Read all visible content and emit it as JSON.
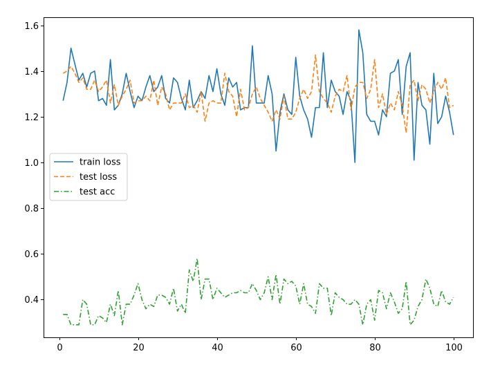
{
  "chart_data": {
    "type": "line",
    "title": "",
    "xlabel": "",
    "ylabel": "",
    "xlim": [
      -3.95,
      104.95
    ],
    "ylim": [
      0.235,
      1.635
    ],
    "xticks": [
      0,
      20,
      40,
      60,
      80,
      100
    ],
    "yticks": [
      0.4,
      0.6,
      0.8,
      1.0,
      1.2,
      1.4,
      1.6
    ],
    "ytick_labels": [
      "0.4",
      "0.6",
      "0.8",
      "1.0",
      "1.2",
      "1.4",
      "1.6"
    ],
    "grid": false,
    "legend_position": "center-left",
    "x": [
      1,
      2,
      3,
      4,
      5,
      6,
      7,
      8,
      9,
      10,
      11,
      12,
      13,
      14,
      15,
      16,
      17,
      18,
      19,
      20,
      21,
      22,
      23,
      24,
      25,
      26,
      27,
      28,
      29,
      30,
      31,
      32,
      33,
      34,
      35,
      36,
      37,
      38,
      39,
      40,
      41,
      42,
      43,
      44,
      45,
      46,
      47,
      48,
      49,
      50,
      51,
      52,
      53,
      54,
      55,
      56,
      57,
      58,
      59,
      60,
      61,
      62,
      63,
      64,
      65,
      66,
      67,
      68,
      69,
      70,
      71,
      72,
      73,
      74,
      75,
      76,
      77,
      78,
      79,
      80,
      81,
      82,
      83,
      84,
      85,
      86,
      87,
      88,
      89,
      90,
      91,
      92,
      93,
      94,
      95,
      96,
      97,
      98,
      99,
      100
    ],
    "series": [
      {
        "name": "train loss",
        "color": "#1f77b4",
        "style": "solid",
        "values": [
          1.27,
          1.35,
          1.5,
          1.43,
          1.36,
          1.39,
          1.33,
          1.39,
          1.4,
          1.27,
          1.28,
          1.25,
          1.45,
          1.23,
          1.25,
          1.3,
          1.39,
          1.31,
          1.24,
          1.29,
          1.27,
          1.33,
          1.38,
          1.31,
          1.33,
          1.38,
          1.28,
          1.26,
          1.37,
          1.35,
          1.28,
          1.23,
          1.36,
          1.24,
          1.27,
          1.31,
          1.28,
          1.38,
          1.31,
          1.41,
          1.3,
          1.25,
          1.37,
          1.33,
          1.35,
          1.23,
          1.24,
          1.24,
          1.51,
          1.26,
          1.26,
          1.26,
          1.38,
          1.3,
          1.05,
          1.22,
          1.3,
          1.23,
          1.21,
          1.46,
          1.29,
          1.23,
          1.19,
          1.11,
          1.24,
          1.24,
          1.48,
          1.24,
          1.36,
          1.31,
          1.29,
          1.21,
          1.31,
          1.27,
          1.0,
          1.58,
          1.48,
          1.21,
          1.18,
          1.18,
          1.12,
          1.23,
          1.2,
          1.39,
          1.4,
          1.45,
          1.21,
          1.42,
          1.48,
          1.01,
          1.35,
          1.25,
          1.23,
          1.08,
          1.39,
          1.17,
          1.2,
          1.29,
          1.22,
          1.12
        ]
      },
      {
        "name": "test loss",
        "color": "#ff7f0e",
        "style": "dashed",
        "values": [
          1.39,
          1.4,
          1.42,
          1.39,
          1.35,
          1.37,
          1.32,
          1.32,
          1.36,
          1.31,
          1.33,
          1.36,
          1.26,
          1.34,
          1.25,
          1.29,
          1.32,
          1.36,
          1.26,
          1.27,
          1.27,
          1.29,
          1.27,
          1.36,
          1.25,
          1.33,
          1.3,
          1.23,
          1.26,
          1.26,
          1.26,
          1.3,
          1.24,
          1.25,
          1.22,
          1.31,
          1.18,
          1.26,
          1.27,
          1.26,
          1.26,
          1.39,
          1.31,
          1.29,
          1.2,
          1.32,
          1.23,
          1.24,
          1.3,
          1.33,
          1.28,
          1.25,
          1.22,
          1.18,
          1.23,
          1.19,
          1.29,
          1.19,
          1.19,
          1.22,
          1.28,
          1.32,
          1.28,
          1.31,
          1.47,
          1.31,
          1.28,
          1.26,
          1.22,
          1.29,
          1.32,
          1.31,
          1.38,
          1.23,
          1.33,
          1.35,
          1.35,
          1.28,
          1.32,
          1.45,
          1.24,
          1.3,
          1.21,
          1.26,
          1.23,
          1.31,
          1.25,
          1.13,
          1.34,
          1.36,
          1.27,
          1.34,
          1.32,
          1.26,
          1.31,
          1.35,
          1.32,
          1.37,
          1.24,
          1.25
        ]
      },
      {
        "name": "test acc",
        "color": "#2ca02c",
        "style": "dashdot",
        "values": [
          0.335,
          0.335,
          0.29,
          0.29,
          0.29,
          0.4,
          0.38,
          0.29,
          0.29,
          0.33,
          0.32,
          0.3,
          0.38,
          0.33,
          0.44,
          0.29,
          0.38,
          0.38,
          0.42,
          0.47,
          0.4,
          0.36,
          0.38,
          0.37,
          0.42,
          0.42,
          0.41,
          0.38,
          0.45,
          0.35,
          0.38,
          0.34,
          0.53,
          0.48,
          0.58,
          0.4,
          0.49,
          0.49,
          0.4,
          0.45,
          0.43,
          0.41,
          0.42,
          0.43,
          0.43,
          0.44,
          0.43,
          0.43,
          0.47,
          0.44,
          0.4,
          0.43,
          0.5,
          0.4,
          0.51,
          0.38,
          0.49,
          0.47,
          0.48,
          0.46,
          0.38,
          0.47,
          0.38,
          0.37,
          0.34,
          0.47,
          0.45,
          0.45,
          0.33,
          0.43,
          0.41,
          0.4,
          0.38,
          0.38,
          0.4,
          0.38,
          0.29,
          0.38,
          0.4,
          0.31,
          0.44,
          0.43,
          0.36,
          0.43,
          0.39,
          0.34,
          0.36,
          0.48,
          0.29,
          0.31,
          0.37,
          0.4,
          0.49,
          0.45,
          0.38,
          0.37,
          0.44,
          0.39,
          0.38,
          0.41
        ]
      }
    ]
  }
}
